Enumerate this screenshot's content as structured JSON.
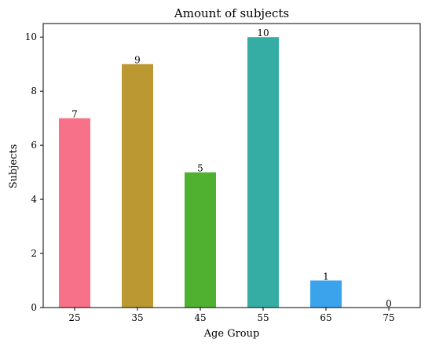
{
  "chart_data": {
    "type": "bar",
    "title": "Amount of subjects",
    "xlabel": "Age Group",
    "ylabel": "Subjects",
    "categories": [
      "25",
      "35",
      "45",
      "55",
      "65",
      "75"
    ],
    "values": [
      7,
      9,
      5,
      10,
      1,
      0
    ],
    "data_labels": [
      "7",
      "9",
      "5",
      "10",
      "1",
      "0"
    ],
    "colors": [
      "#f77189",
      "#bb9832",
      "#50b131",
      "#36ada4",
      "#3ba3ec",
      "#e866f4"
    ],
    "ylim": [
      0,
      10.5
    ],
    "yticks": [
      0,
      2,
      4,
      6,
      8,
      10
    ],
    "grid": false,
    "legend": "none"
  }
}
